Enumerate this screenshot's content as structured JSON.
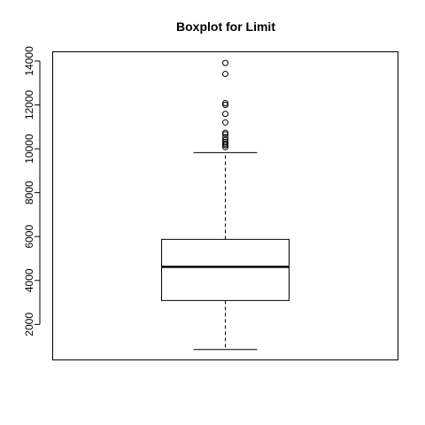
{
  "chart_data": {
    "type": "boxplot",
    "title": "Boxplot for Limit",
    "xlabel": "",
    "ylabel": "",
    "ylim": [
      400,
      14400
    ],
    "yticks": [
      2000,
      4000,
      6000,
      8000,
      10000,
      12000,
      14000
    ],
    "ytick_labels": [
      "2000",
      "4000",
      "6000",
      "8000",
      "10000",
      "12000",
      "14000"
    ],
    "series": [
      {
        "whisker_low": 855,
        "q1": 3088,
        "median": 4622,
        "q3": 5873,
        "whisker_high": 9824,
        "outliers": [
          10075,
          10165,
          10230,
          10310,
          10400,
          10530,
          10660,
          10730,
          11200,
          11590,
          12000,
          12080,
          13410,
          13910
        ]
      }
    ],
    "grid": false,
    "legend": "none",
    "colors": {
      "stroke": "#000000",
      "box_fill": "#ffffff"
    }
  }
}
